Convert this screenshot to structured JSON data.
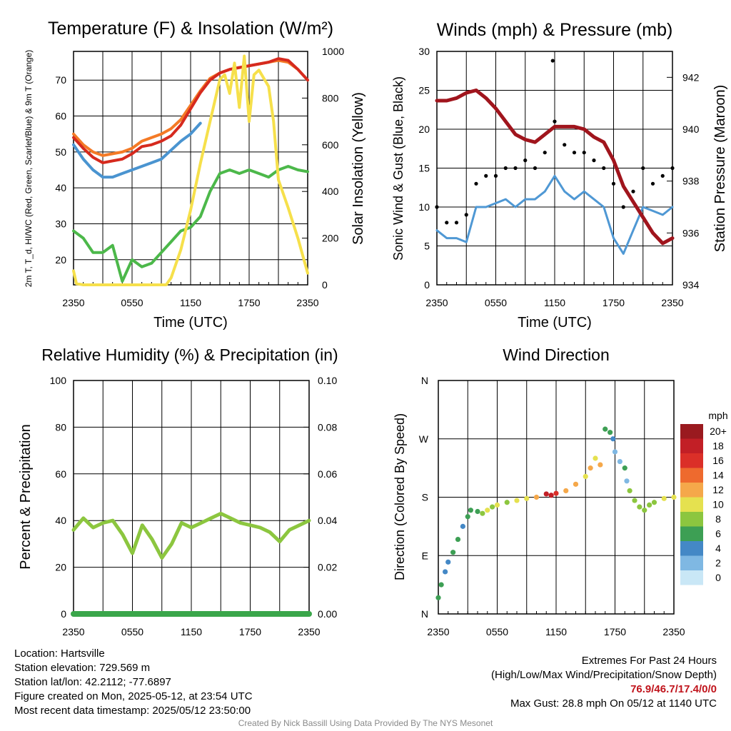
{
  "chart_data": [
    {
      "type": "line",
      "title": "Temperature (F) & Insolation (W/m²)",
      "xlabel": "Time (UTC)",
      "ylabel_left": "2m T, T_d, HI/WC (Red, Green, Scarlet/Blue) & 9m T (Orange)",
      "ylabel_right": "Solar Insolation (Yellow)",
      "x_ticks": [
        "2350",
        "0550",
        "1150",
        "1750",
        "2350"
      ],
      "xlim": [
        0,
        24
      ],
      "ylim_left": [
        13,
        78
      ],
      "yticks_left": [
        20,
        30,
        40,
        50,
        60,
        70
      ],
      "ylim_right": [
        0,
        1000
      ],
      "yticks_right": [
        0,
        200,
        400,
        600,
        800,
        1000
      ],
      "series": [
        {
          "axis": "left",
          "color": "#f47a26",
          "x": [
            0,
            1,
            2,
            3,
            4,
            5,
            6,
            7,
            8,
            9,
            10,
            11,
            12,
            13,
            14,
            15,
            16,
            17,
            18,
            19,
            20,
            21,
            22,
            23,
            24
          ],
          "y": [
            55,
            52,
            50,
            49,
            49.5,
            50,
            51,
            53,
            54,
            55,
            56.5,
            59,
            63,
            67,
            70.5,
            72,
            73,
            73.5,
            74,
            74.5,
            75,
            75.5,
            75,
            73,
            70
          ]
        },
        {
          "axis": "left",
          "color": "#d62a1e",
          "x": [
            0,
            1,
            2,
            3,
            4,
            5,
            6,
            7,
            8,
            9,
            10,
            11,
            12,
            13,
            14,
            15,
            16,
            17,
            18,
            19,
            20,
            21,
            22,
            23,
            24
          ],
          "y": [
            54,
            51,
            48.5,
            47,
            47.5,
            48,
            49.5,
            51.5,
            52,
            53,
            54.5,
            57.5,
            62,
            66.5,
            70,
            72,
            73,
            73.5,
            74,
            74.5,
            75,
            76,
            75.5,
            73,
            70
          ]
        },
        {
          "axis": "left",
          "color": "#4a94d0",
          "x": [
            0,
            1,
            2,
            3,
            4,
            5,
            6,
            7,
            8,
            9,
            10,
            11,
            12,
            13
          ],
          "y": [
            52,
            48,
            45,
            43,
            43,
            44,
            45,
            46,
            47,
            48,
            50.5,
            53,
            55,
            58
          ]
        },
        {
          "axis": "left",
          "color": "#4cb84a",
          "x": [
            0,
            1,
            2,
            3,
            4,
            5,
            6,
            7,
            8,
            9,
            10,
            11,
            12,
            13,
            14,
            15,
            16,
            17,
            18,
            19,
            20,
            21,
            22,
            23,
            24
          ],
          "y": [
            28,
            26,
            22,
            22,
            24,
            14,
            20,
            18,
            19,
            22,
            25,
            28,
            29,
            32,
            39,
            44,
            45,
            44,
            45,
            44,
            43,
            45,
            46,
            45,
            44.5
          ]
        },
        {
          "axis": "right",
          "color": "#f6e04b",
          "x": [
            0,
            0.3,
            1,
            2,
            3,
            4,
            5,
            6,
            7,
            8,
            9,
            9.5,
            10,
            11,
            12,
            13,
            14,
            15,
            15.5,
            16,
            16.5,
            17,
            17.5,
            18,
            18.5,
            19,
            20,
            20.5,
            21,
            22,
            23,
            24
          ],
          "y": [
            60,
            5,
            0,
            0,
            0,
            0,
            0,
            0,
            0,
            0,
            0,
            0,
            30,
            150,
            320,
            520,
            700,
            880,
            900,
            820,
            950,
            760,
            980,
            700,
            900,
            920,
            850,
            700,
            450,
            330,
            200,
            50
          ]
        }
      ]
    },
    {
      "type": "scatter",
      "title": "Winds (mph) & Pressure (mb)",
      "xlabel": "Time (UTC)",
      "ylabel_left": "Sonic Wind & Gust (Blue, Black)",
      "ylabel_right": "Station Pressure (Maroon)",
      "x_ticks": [
        "2350",
        "0550",
        "1150",
        "1750",
        "2350"
      ],
      "xlim": [
        0,
        24
      ],
      "ylim_left": [
        0,
        30
      ],
      "yticks_left": [
        0,
        5,
        10,
        15,
        20,
        25,
        30
      ],
      "ylim_right": [
        934,
        943
      ],
      "yticks_right": [
        934,
        936,
        938,
        940,
        942
      ],
      "series": [
        {
          "name": "Sonic Wind",
          "kind": "line",
          "axis": "left",
          "color": "#4f98d4",
          "x": [
            0,
            1,
            2,
            3,
            4,
            5,
            6,
            7,
            8,
            9,
            10,
            11,
            12,
            13,
            14,
            15,
            16,
            17,
            18,
            19,
            20,
            21,
            22,
            23,
            24
          ],
          "y": [
            7,
            6,
            6,
            5.5,
            10,
            10,
            10.5,
            11,
            10,
            11,
            11,
            12,
            14,
            12,
            11,
            12,
            11,
            10,
            6,
            4,
            7,
            10,
            9.5,
            9,
            10
          ]
        },
        {
          "name": "Gust",
          "kind": "points",
          "axis": "left",
          "color": "#000000",
          "x": [
            0,
            1,
            2,
            3,
            4,
            5,
            6,
            7,
            8,
            9,
            10,
            11,
            12,
            13,
            14,
            15,
            16,
            17,
            18,
            19,
            20,
            21,
            22,
            23,
            24
          ],
          "y": [
            10,
            8,
            8,
            9,
            13,
            14,
            14,
            15,
            15,
            16,
            15,
            17,
            21,
            18,
            17,
            17,
            16,
            15,
            13,
            10,
            12,
            15,
            13,
            14,
            15
          ]
        },
        {
          "name": "Station Pressure",
          "kind": "line",
          "axis": "right",
          "color": "#a0151d",
          "x": [
            0,
            1,
            2,
            3,
            4,
            5,
            6,
            7,
            8,
            9,
            10,
            11,
            12,
            13,
            14,
            15,
            16,
            17,
            18,
            19,
            20,
            21,
            22,
            23,
            24
          ],
          "y": [
            941.1,
            941.1,
            941.2,
            941.4,
            941.5,
            941.2,
            940.8,
            940.3,
            939.8,
            939.6,
            939.5,
            939.8,
            940.1,
            940.1,
            940.1,
            940.0,
            939.7,
            939.5,
            938.8,
            937.8,
            937.2,
            936.6,
            936.0,
            935.6,
            935.8
          ]
        }
      ],
      "gust_max": {
        "x": 11.8,
        "y": 28.8
      }
    },
    {
      "type": "line",
      "title": "Relative Humidity (%) & Precipitation (in)",
      "ylabel": "Percent & Precipitation",
      "x_ticks": [
        "2350",
        "0550",
        "1150",
        "1750",
        "2350"
      ],
      "xlim": [
        0,
        24
      ],
      "ylim_left": [
        0,
        100
      ],
      "yticks_left": [
        0,
        20,
        40,
        60,
        80,
        100
      ],
      "ylim_right": [
        0,
        0.1
      ],
      "yticks_right": [
        "0.00",
        "0.02",
        "0.04",
        "0.06",
        "0.08",
        "0.10"
      ],
      "series": [
        {
          "axis": "left",
          "color": "#8cc63f",
          "x": [
            0,
            1,
            2,
            3,
            4,
            5,
            6,
            7,
            8,
            9,
            10,
            11,
            12,
            13,
            14,
            15,
            16,
            17,
            18,
            19,
            20,
            21,
            22,
            23,
            24
          ],
          "y": [
            36,
            41,
            37,
            39,
            40,
            34,
            26,
            38,
            32,
            24,
            30,
            39,
            37,
            39,
            41,
            43,
            41,
            39,
            38,
            37,
            35,
            31,
            36,
            38,
            40
          ]
        },
        {
          "axis": "right",
          "color": "#3aa64a",
          "x": [
            0,
            24
          ],
          "y": [
            0,
            0
          ]
        }
      ]
    },
    {
      "type": "scatter",
      "title": "Wind Direction",
      "ylabel": "Direction (Colored By Speed)",
      "x_ticks": [
        "2350",
        "0550",
        "1150",
        "1750",
        "2350"
      ],
      "xlim": [
        0,
        24
      ],
      "ylim": [
        0,
        360
      ],
      "y_ticks": [
        "N",
        "E",
        "S",
        "W",
        "N"
      ],
      "colorbar": {
        "title": "mph",
        "labels": [
          "20+",
          "18",
          "16",
          "14",
          "12",
          "10",
          "8",
          "6",
          "4",
          "2",
          "0"
        ],
        "colors": [
          "#9a1a1f",
          "#c21f26",
          "#db2f28",
          "#ee6a2e",
          "#f5a84a",
          "#e5e14f",
          "#8cc63f",
          "#3d9f54",
          "#4488c6",
          "#7fb8e3",
          "#c9e7f6"
        ]
      },
      "points": [
        [
          0,
          25,
          6
        ],
        [
          0.3,
          45,
          6
        ],
        [
          0.7,
          65,
          5
        ],
        [
          1,
          80,
          4
        ],
        [
          1.5,
          95,
          6
        ],
        [
          2,
          115,
          6
        ],
        [
          2.5,
          135,
          4
        ],
        [
          3,
          150,
          7
        ],
        [
          3.3,
          160,
          7
        ],
        [
          4,
          158,
          7
        ],
        [
          4.5,
          155,
          9
        ],
        [
          5,
          160,
          10
        ],
        [
          5.5,
          165,
          8
        ],
        [
          6,
          168,
          10
        ],
        [
          7,
          172,
          9
        ],
        [
          8,
          175,
          11
        ],
        [
          9,
          178,
          11
        ],
        [
          10,
          180,
          13
        ],
        [
          11,
          185,
          18
        ],
        [
          11.5,
          183,
          19
        ],
        [
          12,
          186,
          16
        ],
        [
          13,
          190,
          13
        ],
        [
          14,
          200,
          12
        ],
        [
          15,
          212,
          11
        ],
        [
          15.5,
          225,
          13
        ],
        [
          16,
          240,
          11
        ],
        [
          16.5,
          230,
          12
        ],
        [
          17,
          285,
          6
        ],
        [
          17.5,
          280,
          7
        ],
        [
          17.8,
          270,
          5
        ],
        [
          18,
          250,
          3
        ],
        [
          18.5,
          235,
          2
        ],
        [
          19,
          225,
          6
        ],
        [
          19.2,
          205,
          3
        ],
        [
          19.5,
          190,
          8
        ],
        [
          20,
          175,
          8
        ],
        [
          20.5,
          165,
          9
        ],
        [
          21,
          160,
          9
        ],
        [
          21.5,
          168,
          8
        ],
        [
          22,
          172,
          9
        ],
        [
          23,
          178,
          10
        ],
        [
          24,
          180,
          10
        ]
      ]
    }
  ],
  "info": {
    "location": "Location: Hartsville",
    "elevation": "Station elevation: 729.569 m",
    "latlon": "Station lat/lon: 42.2112; -77.6897",
    "created": "Figure created on Mon, 2025-05-12, at 23:54 UTC",
    "recent": "Most recent data timestamp: 2025/05/12 23:50:00"
  },
  "extremes": {
    "title": "Extremes For Past 24 Hours",
    "legend": "(High/Low/Max Wind/Precipitation/Snow Depth)",
    "values": "76.9/46.7/17.4/0/0",
    "gust": "Max Gust: 28.8 mph On 05/12 at 1140 UTC"
  },
  "credit": "Created By Nick Bassill Using Data Provided By The NYS Mesonet"
}
